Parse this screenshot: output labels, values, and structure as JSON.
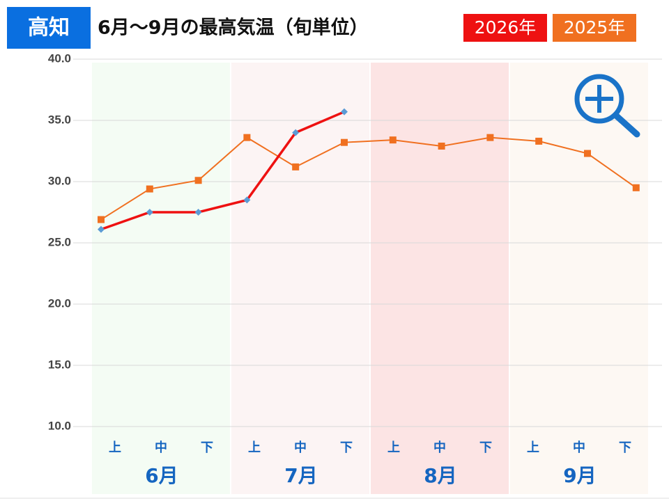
{
  "chart_data": {
    "type": "line",
    "region": "高知",
    "title": "6月～9月の最高気温（旬単位）",
    "categories": [
      "上",
      "中",
      "下",
      "上",
      "中",
      "下",
      "上",
      "中",
      "下",
      "上",
      "中",
      "下"
    ],
    "months": [
      "6月",
      "7月",
      "8月",
      "9月"
    ],
    "band_colors": [
      "#f4fcf4",
      "#fcf4f4",
      "#fce4e4",
      "#fdf8f3"
    ],
    "series": [
      {
        "name": "2026年",
        "color": "#ee1111",
        "marker_color": "#5b9bd5",
        "marker": "diamond",
        "values": [
          26.1,
          27.5,
          27.5,
          28.5,
          34.0,
          35.7,
          null,
          null,
          null,
          null,
          null,
          null
        ]
      },
      {
        "name": "2025年",
        "color": "#f07020",
        "marker_color": "#f07020",
        "marker": "square",
        "values": [
          26.9,
          29.4,
          30.1,
          33.6,
          31.2,
          33.2,
          33.4,
          32.9,
          33.6,
          33.3,
          32.3,
          29.5
        ]
      }
    ],
    "ylim": [
      10,
      40
    ],
    "yticks": [
      {
        "value": 10,
        "label": "10.0"
      },
      {
        "value": 15,
        "label": "15.0"
      },
      {
        "value": 20,
        "label": "20.0"
      },
      {
        "value": 25,
        "label": "25.0"
      },
      {
        "value": 30,
        "label": "30.0"
      },
      {
        "value": 35,
        "label": "35.0"
      },
      {
        "value": 40,
        "label": "40.0"
      }
    ],
    "grid": true
  }
}
